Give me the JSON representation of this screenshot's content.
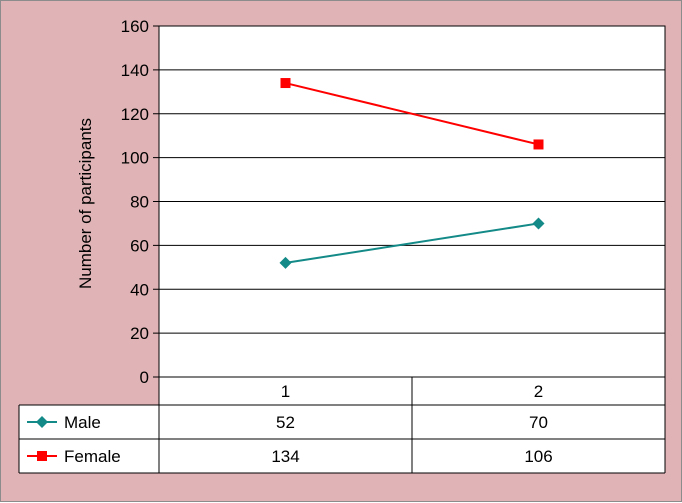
{
  "chart_data": {
    "type": "line",
    "categories": [
      "1",
      "2"
    ],
    "series": [
      {
        "name": "Male",
        "values": [
          52,
          70
        ],
        "color": "#138a87",
        "marker": "diamond"
      },
      {
        "name": "Female",
        "values": [
          134,
          106
        ],
        "color": "#ff0000",
        "marker": "square"
      }
    ],
    "ylabel": "Number of participants",
    "ylim": [
      0,
      160
    ],
    "yticks": [
      "0",
      "20",
      "40",
      "60",
      "80",
      "100",
      "120",
      "140",
      "160"
    ],
    "grid": true,
    "legend": "data-table",
    "data_table": true,
    "background": "#e0b4b6",
    "plot_background": "#ffffff"
  }
}
